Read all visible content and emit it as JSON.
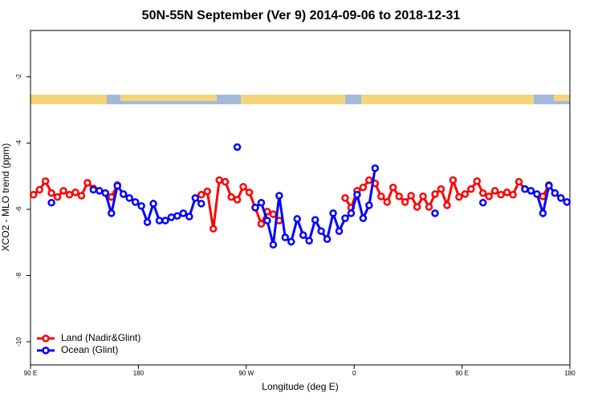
{
  "chart_data": {
    "type": "line",
    "title": "50N-55N September (Ver 9)   2014-09-06 to 2018-12-31",
    "x_label": "Longitude (deg E)",
    "y_label": "XCO2 - MLO trend (ppm)",
    "x": [
      92.5,
      97.5,
      102.5,
      107.5,
      112.5,
      117.5,
      122.5,
      127.5,
      132.5,
      137.5,
      142.5,
      147.5,
      152.5,
      157.5,
      162.5,
      167.5,
      172.5,
      177.5,
      182.5,
      187.5,
      192.5,
      197.5,
      202.5,
      207.5,
      212.5,
      217.5,
      222.5,
      227.5,
      232.5,
      237.5,
      242.5,
      247.5,
      252.5,
      257.5,
      262.5,
      267.5,
      272.5,
      277.5,
      282.5,
      287.5,
      292.5,
      297.5,
      302.5,
      307.5,
      312.5,
      317.5,
      322.5,
      327.5,
      332.5,
      337.5,
      342.5,
      347.5,
      352.5,
      357.5,
      362.5,
      367.5,
      372.5,
      377.5,
      382.5,
      387.5,
      392.5,
      397.5,
      402.5,
      407.5,
      412.5,
      417.5,
      422.5,
      427.5,
      432.5,
      437.5,
      442.5,
      447.5,
      452.5,
      457.5,
      462.5,
      467.5,
      472.5,
      477.5,
      482.5,
      487.5,
      492.5,
      497.5,
      502.5,
      507.5,
      512.5,
      517.5,
      522.5,
      527.5,
      532.5,
      537.5
    ],
    "series": [
      {
        "name": "Land (Nadir&Glint)",
        "color": "#ff0000",
        "values": [
          -5.56,
          -5.41,
          -5.15,
          -5.51,
          -5.63,
          -5.44,
          -5.56,
          -5.49,
          -5.59,
          -5.2,
          -5.37,
          null,
          null,
          -5.63,
          -5.27,
          null,
          null,
          null,
          null,
          null,
          null,
          null,
          null,
          null,
          null,
          null,
          null,
          null,
          -5.56,
          -5.46,
          -6.59,
          -5.12,
          -5.17,
          -5.63,
          -5.71,
          -5.32,
          -5.49,
          -5.95,
          -6.44,
          -6.07,
          -6.15,
          -6.34,
          null,
          null,
          null,
          null,
          null,
          null,
          null,
          null,
          null,
          null,
          -5.66,
          -5.95,
          -5.44,
          -5.34,
          -5.12,
          -5.22,
          -5.61,
          -5.78,
          -5.34,
          -5.61,
          -5.78,
          -5.59,
          -5.93,
          -5.61,
          -5.93,
          -5.54,
          -5.39,
          -5.88,
          -5.12,
          -5.63,
          -5.54,
          -5.39,
          -5.15,
          -5.51,
          -5.61,
          -5.44,
          -5.56,
          -5.49,
          -5.56,
          -5.17,
          -5.39,
          null,
          null,
          -5.61,
          -5.27,
          null,
          null,
          null
        ]
      },
      {
        "name": "Ocean (Glint)",
        "color": "#0000ff",
        "values": [
          null,
          null,
          null,
          -5.8,
          null,
          null,
          null,
          null,
          null,
          null,
          -5.41,
          -5.44,
          -5.51,
          -6.12,
          -5.29,
          -5.54,
          -5.66,
          -5.78,
          -5.9,
          -6.39,
          -5.83,
          -6.34,
          -6.34,
          -6.24,
          -6.2,
          -6.12,
          -6.22,
          -5.66,
          -5.83,
          null,
          null,
          null,
          null,
          null,
          -4.12,
          null,
          null,
          -5.95,
          -5.8,
          -6.34,
          -7.07,
          -5.59,
          -6.85,
          -6.98,
          -6.29,
          -6.78,
          -6.95,
          -6.32,
          -6.66,
          -6.9,
          -6.12,
          -6.66,
          -6.27,
          -6.12,
          -5.56,
          -6.27,
          -5.88,
          -4.76,
          null,
          null,
          null,
          null,
          null,
          null,
          null,
          null,
          null,
          -6.12,
          null,
          null,
          null,
          null,
          null,
          null,
          null,
          -5.8,
          null,
          null,
          null,
          null,
          null,
          null,
          -5.39,
          -5.44,
          -5.54,
          -6.12,
          -5.29,
          -5.51,
          -5.66,
          -5.78
        ]
      }
    ],
    "xlim": [
      90,
      540
    ],
    "xticks": [
      {
        "value": 90,
        "label": "90 E"
      },
      {
        "value": 180,
        "label": "180"
      },
      {
        "value": 270,
        "label": "90 W"
      },
      {
        "value": 360,
        "label": "0"
      },
      {
        "value": 450,
        "label": "90 E"
      },
      {
        "value": 540,
        "label": "180"
      }
    ],
    "ylim": [
      -10.7,
      -0.6
    ],
    "yticks": [
      -2,
      -4,
      -6,
      -8,
      -10
    ],
    "grid": false,
    "legend": "bottom-left"
  }
}
